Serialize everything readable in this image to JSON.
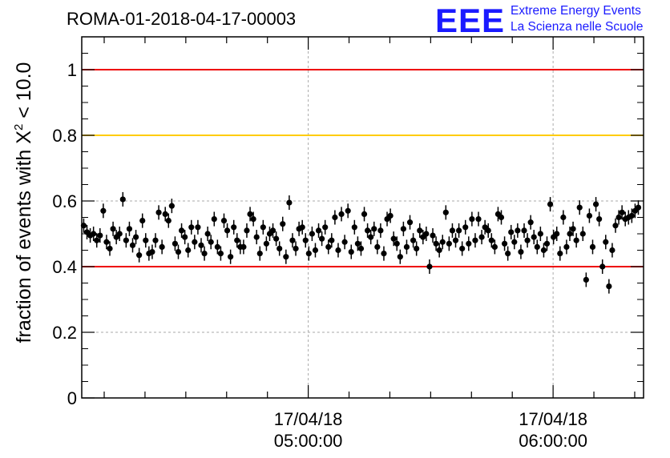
{
  "run_title": "ROMA-01-2018-04-17-00003",
  "logo": {
    "mark": "EEE",
    "line1": "Extreme Energy Events",
    "line2": "La Scienza nelle Scuole",
    "color": "#1a1aff"
  },
  "chart_data": {
    "type": "scatter",
    "ylabel_prefix": "fraction of events with ",
    "ylabel_symbol": "X",
    "ylabel_exp": "2",
    "ylabel_suffix": " < 10.0",
    "ylim": [
      0,
      1.1
    ],
    "yticks": [
      "0",
      "0.2",
      "0.4",
      "0.6",
      "0.8",
      "1"
    ],
    "ytick_values": [
      0,
      0.2,
      0.4,
      0.6,
      0.8,
      1.0
    ],
    "grid": true,
    "xlim": [
      "17/04/18 04:04:30",
      "17/04/18 06:22:10"
    ],
    "xticks": [
      {
        "date": "17/04/18",
        "time": "05:00:00"
      },
      {
        "date": "17/04/18",
        "time": "06:00:00"
      }
    ],
    "hlines": [
      {
        "y": 1.0,
        "color": "#ee0000"
      },
      {
        "y": 0.8,
        "color": "#ffcc00"
      },
      {
        "y": 0.4,
        "color": "#ee0000"
      }
    ],
    "marker_color": "#000000",
    "y_error": 0.022,
    "y_values": [
      0.525,
      0.505,
      0.495,
      0.5,
      0.48,
      0.495,
      0.57,
      0.475,
      0.455,
      0.515,
      0.49,
      0.5,
      0.605,
      0.48,
      0.515,
      0.465,
      0.49,
      0.435,
      0.54,
      0.48,
      0.44,
      0.445,
      0.48,
      0.565,
      0.46,
      0.56,
      0.54,
      0.585,
      0.47,
      0.445,
      0.51,
      0.49,
      0.45,
      0.52,
      0.475,
      0.52,
      0.465,
      0.44,
      0.5,
      0.475,
      0.545,
      0.46,
      0.44,
      0.54,
      0.51,
      0.43,
      0.52,
      0.48,
      0.46,
      0.46,
      0.51,
      0.56,
      0.545,
      0.49,
      0.44,
      0.52,
      0.47,
      0.5,
      0.51,
      0.485,
      0.455,
      0.53,
      0.43,
      0.595,
      0.48,
      0.455,
      0.515,
      0.52,
      0.48,
      0.44,
      0.5,
      0.45,
      0.51,
      0.485,
      0.52,
      0.46,
      0.48,
      0.55,
      0.45,
      0.56,
      0.475,
      0.57,
      0.445,
      0.52,
      0.47,
      0.455,
      0.56,
      0.51,
      0.49,
      0.515,
      0.46,
      0.51,
      0.44,
      0.545,
      0.555,
      0.485,
      0.47,
      0.43,
      0.515,
      0.46,
      0.535,
      0.48,
      0.455,
      0.51,
      0.49,
      0.5,
      0.4,
      0.495,
      0.47,
      0.45,
      0.475,
      0.565,
      0.47,
      0.51,
      0.48,
      0.51,
      0.455,
      0.52,
      0.47,
      0.545,
      0.48,
      0.545,
      0.49,
      0.52,
      0.51,
      0.48,
      0.46,
      0.56,
      0.55,
      0.47,
      0.44,
      0.505,
      0.475,
      0.51,
      0.445,
      0.51,
      0.48,
      0.535,
      0.49,
      0.46,
      0.5,
      0.45,
      0.47,
      0.59,
      0.49,
      0.5,
      0.44,
      0.55,
      0.46,
      0.5,
      0.515,
      0.48,
      0.58,
      0.5,
      0.36,
      0.555,
      0.46,
      0.59,
      0.545,
      0.4,
      0.475,
      0.34,
      0.45,
      0.525,
      0.55,
      0.565,
      0.545,
      0.55,
      0.555,
      0.57,
      0.58
    ]
  }
}
